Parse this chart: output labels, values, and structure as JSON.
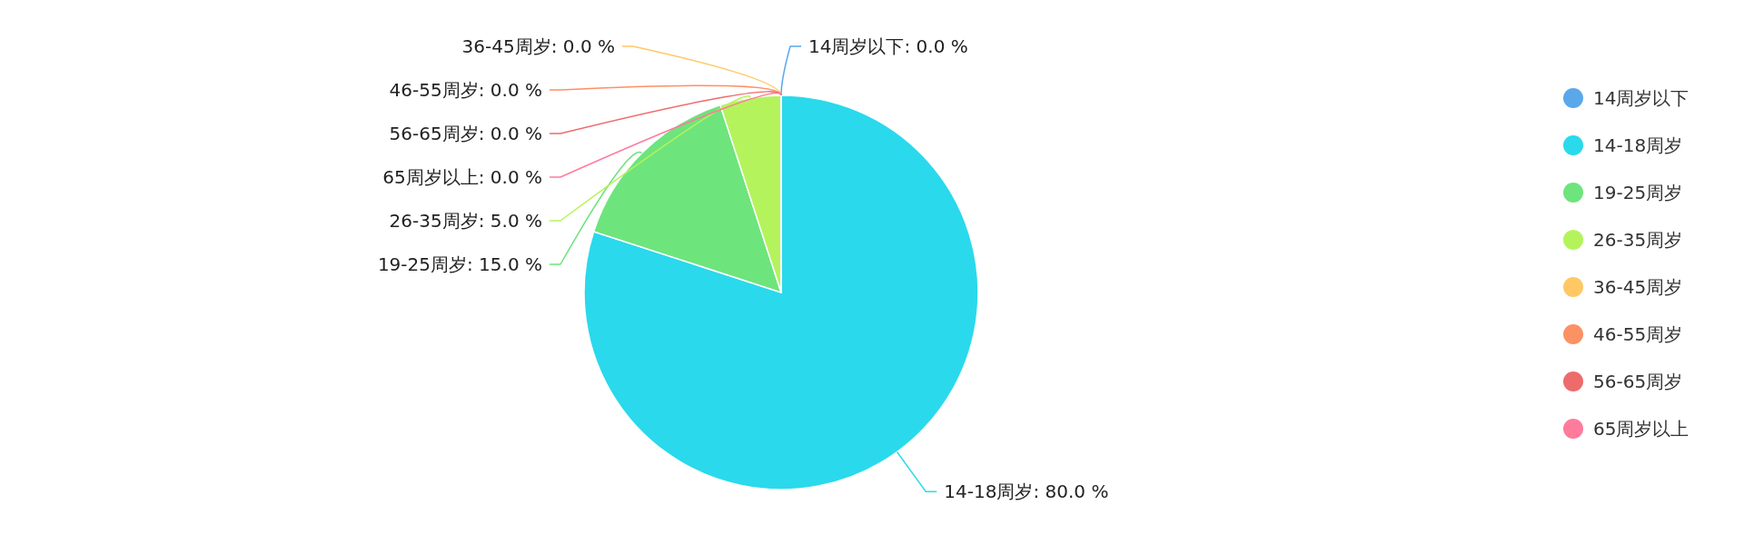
{
  "chart_data": {
    "type": "pie",
    "categories": [
      "14周岁以下",
      "14-18周岁",
      "19-25周岁",
      "26-35周岁",
      "36-45周岁",
      "46-55周岁",
      "56-65周岁",
      "65周岁以上"
    ],
    "values": [
      0,
      80,
      15,
      5,
      0,
      0,
      0,
      0
    ],
    "colors": [
      "#5aa8ea",
      "#2ad9ec",
      "#6ee47c",
      "#b5f35d",
      "#ffc865",
      "#fc9164",
      "#ee6b6c",
      "#ff7b9c"
    ],
    "value_labels": [
      "14周岁以下: 0.0 %",
      "14-18周岁: 80.0 %",
      "19-25周岁: 15.0 %",
      "26-35周岁: 5.0 %",
      "36-45周岁: 0.0 %",
      "46-55周岁: 0.0 %",
      "56-65周岁: 0.0 %",
      "65周岁以上: 0.0 %"
    ],
    "legend": "right"
  }
}
